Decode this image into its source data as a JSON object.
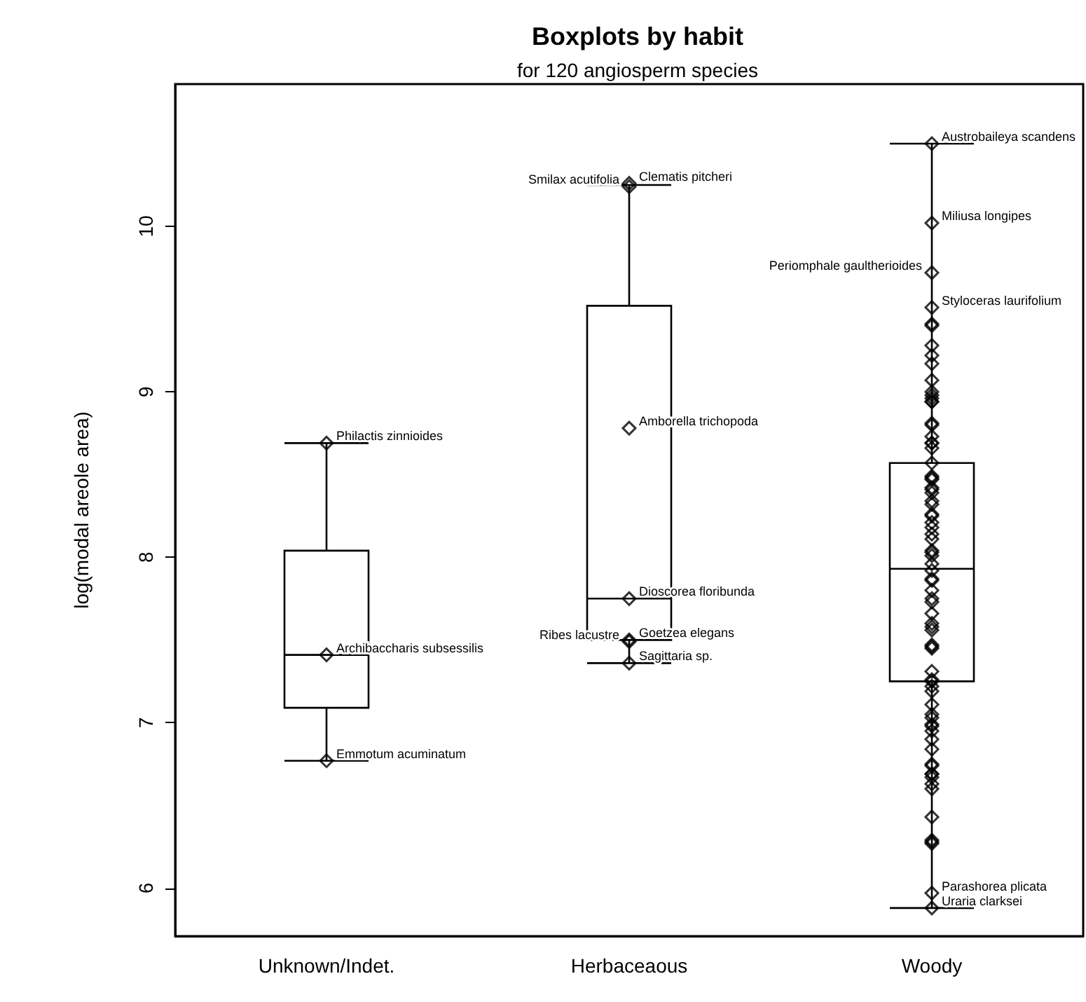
{
  "chart_data": {
    "type": "box",
    "title": "Boxplots by habit",
    "subtitle": "for 120 angiosperm species",
    "ylabel": "log(modal areole area)",
    "categories": [
      "Unknown/Indet.",
      "Herbaceaous",
      "Woody"
    ],
    "boxes": [
      {
        "low": 6.77,
        "q1": 7.09,
        "median": 7.41,
        "q3": 8.04,
        "high": 8.69
      },
      {
        "low": 7.36,
        "q1": 7.5,
        "median": 7.75,
        "q3": 9.52,
        "high": 10.25
      },
      {
        "low": 5.88,
        "q1": 7.25,
        "median": 7.93,
        "q3": 8.57,
        "high": 10.5
      }
    ],
    "color": "#000000",
    "series": [
      {
        "type": "scatter",
        "color": "#000000",
        "x": [
          "Unknown/Indet.",
          "Unknown/Indet.",
          "Unknown/Indet.",
          "Herbaceaous",
          "Herbaceaous",
          "Herbaceaous",
          "Herbaceaous",
          "Herbaceaous",
          "Herbaceaous",
          "Herbaceaous",
          "Woody",
          "Woody",
          "Woody",
          "Woody",
          "Woody",
          "Woody",
          "Woody",
          "Woody",
          "Woody",
          "Woody",
          "Woody",
          "Woody",
          "Woody",
          "Woody",
          "Woody",
          "Woody",
          "Woody",
          "Woody",
          "Woody",
          "Woody",
          "Woody",
          "Woody",
          "Woody",
          "Woody",
          "Woody",
          "Woody",
          "Woody",
          "Woody",
          "Woody",
          "Woody",
          "Woody",
          "Woody",
          "Woody",
          "Woody",
          "Woody",
          "Woody",
          "Woody",
          "Woody",
          "Woody",
          "Woody",
          "Woody",
          "Woody",
          "Woody",
          "Woody",
          "Woody",
          "Woody",
          "Woody",
          "Woody",
          "Woody",
          "Woody",
          "Woody",
          "Woody",
          "Woody",
          "Woody",
          "Woody",
          "Woody",
          "Woody",
          "Woody",
          "Woody",
          "Woody",
          "Woody",
          "Woody",
          "Woody",
          "Woody",
          "Woody",
          "Woody",
          "Woody",
          "Woody",
          "Woody",
          "Woody",
          "Woody",
          "Woody",
          "Woody",
          "Woody",
          "Woody",
          "Woody",
          "Woody",
          "Woody",
          "Woody"
        ],
        "values": [
          8.69,
          7.41,
          6.77,
          10.26,
          10.24,
          8.78,
          7.75,
          7.5,
          7.49,
          7.36,
          10.5,
          10.02,
          9.72,
          9.51,
          9.41,
          9.4,
          9.28,
          9.22,
          9.17,
          9.07,
          9.0,
          8.98,
          8.96,
          8.94,
          8.94,
          8.81,
          8.8,
          8.73,
          8.69,
          8.69,
          8.66,
          8.57,
          8.49,
          8.48,
          8.47,
          8.42,
          8.41,
          8.39,
          8.34,
          8.32,
          8.26,
          8.25,
          8.21,
          8.18,
          8.14,
          8.11,
          8.04,
          8.03,
          8.01,
          7.96,
          7.92,
          7.87,
          7.86,
          7.8,
          7.75,
          7.73,
          7.66,
          7.6,
          7.58,
          7.56,
          7.47,
          7.46,
          7.45,
          7.31,
          7.26,
          7.25,
          7.22,
          7.19,
          7.11,
          7.05,
          7.03,
          6.99,
          6.98,
          6.95,
          6.9,
          6.84,
          6.75,
          6.74,
          6.69,
          6.69,
          6.67,
          6.63,
          6.6,
          6.43,
          6.29,
          6.28,
          6.27,
          5.97,
          5.88
        ]
      }
    ],
    "marker": "diamond",
    "ylim": [
      5.71,
      10.86
    ],
    "yticks": [
      6,
      7,
      8,
      9,
      10
    ],
    "grid": false,
    "annotations": [
      {
        "text": "Philactis zinnioides",
        "x": "Unknown/Indet.",
        "y": 8.69
      },
      {
        "text": "Archibaccharis subsessilis",
        "x": "Unknown/Indet.",
        "y": 7.41
      },
      {
        "text": "Emmotum acuminatum",
        "x": "Unknown/Indet.",
        "y": 6.77
      },
      {
        "text": "Clematis pitcheri",
        "x": "Herbaceaous",
        "y": 10.26
      },
      {
        "text": "Smilax acutifolia",
        "x": "Herbaceaous",
        "y": 10.24
      },
      {
        "text": "Amborella trichopoda",
        "x": "Herbaceaous",
        "y": 8.78
      },
      {
        "text": "Dioscorea floribunda",
        "x": "Herbaceaous",
        "y": 7.75
      },
      {
        "text": "Goetzea elegans",
        "x": "Herbaceaous",
        "y": 7.5
      },
      {
        "text": "Ribes lacustre",
        "x": "Herbaceaous",
        "y": 7.49
      },
      {
        "text": "Sagittaria sp.",
        "x": "Herbaceaous",
        "y": 7.36
      },
      {
        "text": "Austrobaileya scandens",
        "x": "Woody",
        "y": 10.5
      },
      {
        "text": "Miliusa longipes",
        "x": "Woody",
        "y": 10.02
      },
      {
        "text": "Periomphale gaultherioides",
        "x": "Woody",
        "y": 9.72
      },
      {
        "text": "Styloceras laurifolium",
        "x": "Woody",
        "y": 9.51
      },
      {
        "text": "Parashorea plicata",
        "x": "Woody",
        "y": 5.97
      },
      {
        "text": "Uraria clarksei",
        "x": "Woody",
        "y": 5.88
      }
    ]
  }
}
